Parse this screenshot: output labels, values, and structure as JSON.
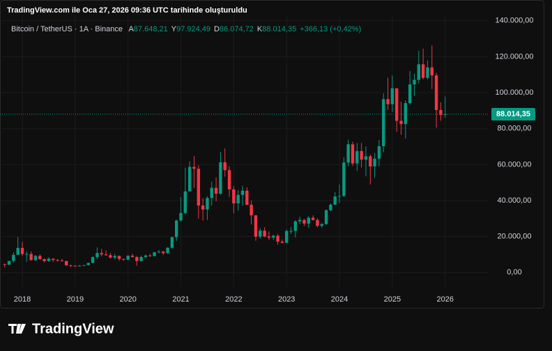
{
  "header": {
    "created": "TradingView.com ile Oca 27, 2026 09:36 UTC tarihinde oluşturuldu",
    "symbol": "Bitcoin / TetherUS · 1A · Binance",
    "ohlc": [
      {
        "key": "A",
        "value": "87.648,21"
      },
      {
        "key": "Y",
        "value": "97.924,49"
      },
      {
        "key": "D",
        "value": "86.074,72"
      },
      {
        "key": "K",
        "value": "88.014,35"
      }
    ],
    "change": "+366,13 (+0,42%)"
  },
  "logo": "TradingView",
  "chart_data": {
    "type": "candlestick",
    "categories": [
      null,
      null,
      null,
      null,
      "2018",
      null,
      null,
      null,
      null,
      null,
      null,
      null,
      null,
      null,
      null,
      null,
      "2019",
      null,
      null,
      null,
      null,
      null,
      null,
      null,
      null,
      null,
      null,
      null,
      "2020",
      null,
      null,
      null,
      null,
      null,
      null,
      null,
      null,
      null,
      null,
      null,
      "2021",
      null,
      null,
      null,
      null,
      null,
      null,
      null,
      null,
      null,
      null,
      null,
      "2022",
      null,
      null,
      null,
      null,
      null,
      null,
      null,
      null,
      null,
      null,
      null,
      "2023",
      null,
      null,
      null,
      null,
      null,
      null,
      null,
      null,
      null,
      null,
      null,
      "2024",
      null,
      null,
      null,
      null,
      null,
      null,
      null,
      null,
      null,
      null,
      null,
      "2025",
      null,
      null,
      null,
      null,
      null,
      null,
      null,
      null,
      null,
      null,
      null,
      "2026"
    ],
    "open": [
      4690,
      4378,
      6463,
      9838,
      13716,
      10285,
      10326,
      6923,
      9246,
      7494,
      6391,
      7730,
      7033,
      6626,
      6371,
      4041,
      3742,
      3458,
      3813,
      4106,
      5321,
      8555,
      10855,
      10090,
      9631,
      8294,
      9199,
      7547,
      7194,
      9350,
      8600,
      6410,
      8620,
      9448,
      9138,
      11335,
      11650,
      10776,
      13791,
      19695,
      28923,
      33092,
      45135,
      58740,
      57694,
      37253,
      35045,
      41461,
      47100,
      43824,
      61300,
      56950,
      46216,
      38466,
      43160,
      45510,
      37630,
      31801,
      19942,
      23293,
      20050,
      19422,
      20490,
      17165,
      16542,
      23125,
      23141,
      28465,
      29233,
      27210,
      30472,
      29232,
      25940,
      26962,
      34639,
      37723,
      42283,
      42580,
      61130,
      71280,
      60672,
      67540,
      62772,
      64628,
      58974,
      63327,
      70215,
      96407,
      93576,
      102430,
      84350,
      82550,
      94172,
      104591,
      107135,
      115764,
      108236,
      114048,
      109608,
      90360,
      87648.21
    ],
    "high": [
      4940,
      6470,
      11300,
      19798,
      17176,
      11786,
      11710,
      9759,
      10020,
      7780,
      8507,
      7750,
      7410,
      7680,
      6620,
      4313,
      4143,
      4198,
      4140,
      5600,
      9075,
      13970,
      13200,
      12330,
      10950,
      10370,
      9500,
      7750,
      9578,
      10500,
      9190,
      9470,
      10080,
      10380,
      11444,
      12468,
      12050,
      14100,
      19863,
      29300,
      41950,
      58352,
      61844,
      64854,
      59592,
      41330,
      42448,
      50500,
      52920,
      67000,
      69000,
      59053,
      47990,
      45821,
      48189,
      47444,
      40023,
      31982,
      24668,
      25211,
      22799,
      20988,
      21480,
      18387,
      23960,
      25250,
      29184,
      31000,
      29820,
      31431,
      31804,
      30244,
      27483,
      35198,
      38450,
      44700,
      48969,
      64000,
      73777,
      72797,
      71979,
      71997,
      70016,
      65659,
      66498,
      73620,
      99588,
      108353,
      109588,
      102500,
      95000,
      95758,
      111980,
      110530,
      123218,
      124474,
      117900,
      126200,
      111000,
      94600,
      97924.49
    ],
    "low": [
      2817,
      4110,
      5500,
      10700,
      9035,
      6000,
      6600,
      6430,
      7032,
      5750,
      6070,
      5880,
      6100,
      6200,
      3652,
      3156,
      3349,
      3373,
      3689,
      4030,
      5320,
      7444,
      9010,
      9320,
      7710,
      7300,
      6515,
      6435,
      6871,
      8450,
      3782,
      6150,
      8100,
      8833,
      8893,
      10525,
      9825,
      10374,
      13195,
      17572,
      28130,
      32296,
      44950,
      47044,
      30000,
      28805,
      29278,
      37332,
      39600,
      43283,
      53256,
      42000,
      32917,
      34322,
      37155,
      37578,
      26700,
      17622,
      18782,
      19520,
      18125,
      18190,
      15476,
      16256,
      16500,
      21351,
      19549,
      26942,
      25811,
      24800,
      28861,
      25166,
      24901,
      26538,
      34097,
      37617,
      38555,
      41884,
      59005,
      59191,
      56552,
      58402,
      53485,
      49000,
      52550,
      58946,
      66835,
      90500,
      89256,
      78258,
      76606,
      74508,
      93347,
      98200,
      105100,
      107350,
      107255,
      102000,
      80600,
      84400,
      86074.72
    ],
    "close": [
      4378,
      6463,
      9838,
      13716,
      10285,
      10326,
      6923,
      9246,
      7494,
      6391,
      7730,
      7033,
      6626,
      6371,
      4041,
      3742,
      3458,
      3813,
      4106,
      5321,
      8555,
      10855,
      10090,
      9631,
      8294,
      9199,
      7547,
      7194,
      9350,
      8600,
      6410,
      8620,
      9448,
      9138,
      11335,
      11650,
      10776,
      13791,
      19695,
      28923,
      33092,
      45135,
      58740,
      57694,
      37253,
      35045,
      41461,
      47100,
      43824,
      61300,
      56950,
      46216,
      38466,
      43160,
      45510,
      37630,
      31801,
      19942,
      23293,
      20050,
      19422,
      20490,
      17165,
      16542,
      23125,
      23141,
      28465,
      29233,
      27210,
      30472,
      29232,
      25940,
      26962,
      34639,
      37723,
      42283,
      42580,
      61130,
      71280,
      60672,
      67540,
      62772,
      64628,
      58974,
      63327,
      70215,
      96407,
      93576,
      102430,
      84350,
      82550,
      94172,
      104591,
      107135,
      115764,
      108236,
      114048,
      109608,
      90360,
      87648,
      88014.35
    ],
    "up_color": "#089981",
    "down_color": "#f23645",
    "ylim": [
      -8000,
      143000
    ],
    "yticks": [
      {
        "value": 0,
        "label": "0,00"
      },
      {
        "value": 20000,
        "label": "20.000,00"
      },
      {
        "value": 40000,
        "label": "40.000,00"
      },
      {
        "value": 60000,
        "label": "60.000,00"
      },
      {
        "value": 80000,
        "label": "80.000,00"
      },
      {
        "value": 100000,
        "label": "100.000,00"
      },
      {
        "value": 120000,
        "label": "120.000,00"
      },
      {
        "value": 140000,
        "label": "140.000,00"
      }
    ],
    "last_price": {
      "value": 88014.35,
      "label": "88.014,35"
    },
    "grid": true
  }
}
